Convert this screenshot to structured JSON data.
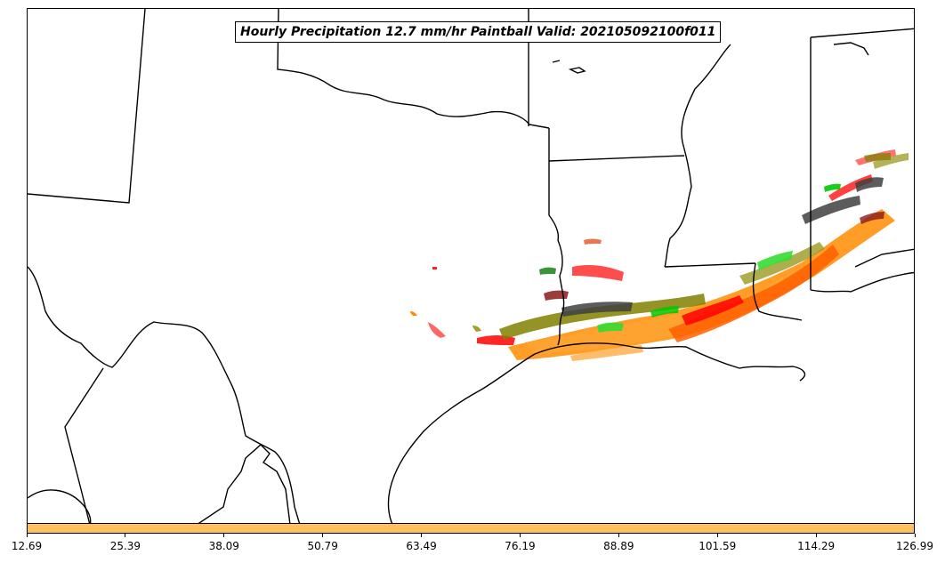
{
  "title": "Hourly Precipitation 12.7 mm/hr Paintball Valid: 202105092100f011",
  "colorbar": {
    "color": "#ffc060",
    "ticks": [
      "12.69",
      "25.39",
      "38.09",
      "50.79",
      "63.49",
      "76.19",
      "88.89",
      "101.59",
      "114.29",
      "126.99"
    ]
  },
  "member_colors": [
    "#ff0000",
    "#ff3333",
    "#ff8c00",
    "#ffa533",
    "#808000",
    "#a0a030",
    "#00c800",
    "#33dd33",
    "#8b1a1a",
    "#404040",
    "#228b22",
    "#e06030"
  ]
}
